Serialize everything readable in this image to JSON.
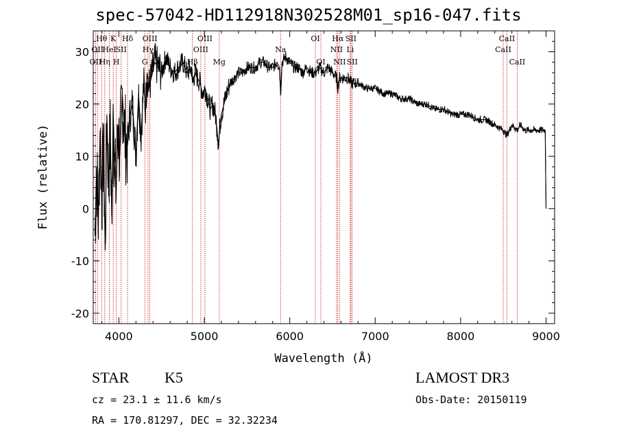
{
  "chart_data": {
    "type": "line",
    "title": "spec-57042-HD112918N302528M01_sp16-047.fits",
    "xlabel": "Wavelength (Å)",
    "ylabel": "Flux (relative)",
    "xlim": [
      3700,
      9100
    ],
    "ylim": [
      -22,
      34
    ],
    "xticks": [
      4000,
      5000,
      6000,
      7000,
      8000,
      9000
    ],
    "yticks": [
      -20,
      -10,
      0,
      10,
      20,
      30
    ],
    "series": [
      {
        "name": "spectrum",
        "x": [
          3720,
          3740,
          3760,
          3780,
          3800,
          3820,
          3840,
          3860,
          3880,
          3900,
          3920,
          3933,
          3950,
          3968,
          3990,
          4010,
          4040,
          4070,
          4100,
          4130,
          4160,
          4200,
          4230,
          4260,
          4290,
          4310,
          4330,
          4350,
          4380,
          4420,
          4460,
          4500,
          4550,
          4600,
          4650,
          4700,
          4750,
          4800,
          4850,
          4861,
          4890,
          4920,
          4950,
          4980,
          5010,
          5040,
          5070,
          5100,
          5130,
          5150,
          5167,
          5175,
          5183,
          5200,
          5230,
          5260,
          5300,
          5350,
          5400,
          5450,
          5500,
          5550,
          5600,
          5650,
          5700,
          5750,
          5800,
          5850,
          5880,
          5893,
          5910,
          5950,
          6000,
          6050,
          6100,
          6150,
          6200,
          6250,
          6300,
          6350,
          6400,
          6450,
          6500,
          6550,
          6563,
          6580,
          6620,
          6680,
          6720,
          6800,
          6900,
          7000,
          7100,
          7200,
          7300,
          7400,
          7500,
          7600,
          7700,
          7800,
          7900,
          8000,
          8100,
          8200,
          8300,
          8400,
          8498,
          8542,
          8600,
          8662,
          8700,
          8750,
          8800,
          8850,
          8900,
          8950,
          8990,
          9000
        ],
        "y": [
          -5,
          8,
          -2,
          15,
          2,
          12,
          -8,
          18,
          5,
          14,
          -3,
          20,
          8,
          3,
          16,
          10,
          22,
          14,
          12,
          18,
          20,
          10,
          22,
          14,
          24,
          19,
          26,
          23,
          25,
          28,
          27,
          26,
          29,
          27,
          26,
          27,
          28,
          26,
          27,
          24,
          26,
          25,
          24,
          22,
          23,
          21,
          19,
          20,
          18,
          15,
          12,
          14,
          16,
          18,
          20,
          22,
          24,
          25,
          26,
          26,
          27,
          27,
          27,
          28,
          28,
          27,
          27,
          28,
          27,
          22,
          28,
          29,
          28,
          27,
          27,
          26,
          27,
          26,
          26,
          27,
          26,
          27,
          26,
          25,
          23,
          25,
          25,
          25,
          24,
          24,
          23,
          23,
          22,
          22,
          21,
          21,
          20,
          20,
          19,
          19,
          18,
          18,
          18,
          17,
          17,
          16,
          15,
          14,
          16,
          15,
          16,
          15,
          15,
          15,
          15,
          15,
          15,
          0
        ]
      }
    ],
    "lines": [
      {
        "wave": 3727,
        "label": "OII",
        "row": 3
      },
      {
        "wave": 3750,
        "label": "OII",
        "row": 2
      },
      {
        "wave": 3798,
        "label": "Hθ",
        "row": 1
      },
      {
        "wave": 3835,
        "label": "Hη",
        "row": 3
      },
      {
        "wave": 3889,
        "label": "HeI",
        "row": 2
      },
      {
        "wave": 3934,
        "label": "K",
        "row": 1
      },
      {
        "wave": 3970,
        "label": "H",
        "row": 3
      },
      {
        "wave": 4027,
        "label": "SII",
        "row": 2
      },
      {
        "wave": 4102,
        "label": "Hδ",
        "row": 1
      },
      {
        "wave": 4304,
        "label": "G",
        "row": 3
      },
      {
        "wave": 4341,
        "label": "Hγ",
        "row": 2
      },
      {
        "wave": 4363,
        "label": "OIII",
        "row": 1
      },
      {
        "wave": 4861,
        "label": "Hβ",
        "row": 3
      },
      {
        "wave": 4959,
        "label": "OIII",
        "row": 2
      },
      {
        "wave": 5007,
        "label": "OIII",
        "row": 1
      },
      {
        "wave": 5175,
        "label": "Mg",
        "row": 3
      },
      {
        "wave": 5893,
        "label": "Na",
        "row": 2
      },
      {
        "wave": 6300,
        "label": "OI",
        "row": 1
      },
      {
        "wave": 6364,
        "label": "OI",
        "row": 3
      },
      {
        "wave": 6548,
        "label": "NII",
        "row": 2
      },
      {
        "wave": 6563,
        "label": "Hα",
        "row": 1
      },
      {
        "wave": 6583,
        "label": "NII",
        "row": 3
      },
      {
        "wave": 6708,
        "label": "Li",
        "row": 2
      },
      {
        "wave": 6716,
        "label": "SII",
        "row": 1
      },
      {
        "wave": 6731,
        "label": "SII",
        "row": 3
      },
      {
        "wave": 8498,
        "label": "CaII",
        "row": 2
      },
      {
        "wave": 8542,
        "label": "CaII",
        "row": 1
      },
      {
        "wave": 8662,
        "label": "CaII",
        "row": 3
      }
    ]
  },
  "info": {
    "class": "STAR",
    "subclass": "K5",
    "survey": "LAMOST DR3",
    "cz": "cz = 23.1 ± 11.6 km/s",
    "obs_date": "Obs-Date: 20150119",
    "coords": "RA = 170.81297, DEC =  32.32234"
  },
  "colors": {
    "spectrum": "#000000",
    "line_marker": "#cc0000",
    "axis": "#000000"
  }
}
